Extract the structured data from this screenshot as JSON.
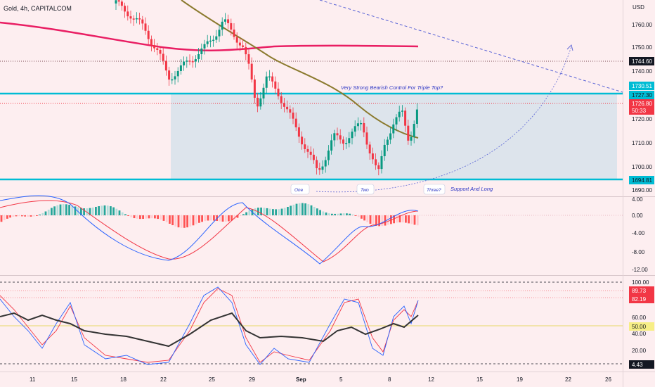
{
  "symbol_title": "Gold, 4h, CAPITALCOM",
  "currency": "USD",
  "annotations": {
    "bearish_note": "Very Strong Bearish Control For Triple Top?",
    "support_note": "Support And Long",
    "top_one": "One",
    "top_two": "Two",
    "top_three": "Three?"
  },
  "time_axis": [
    "11",
    "15",
    "18",
    "22",
    "25",
    "29",
    "Sep",
    "5",
    "8",
    "12",
    "15",
    "19",
    "22",
    "26"
  ],
  "price_ticks": [
    "1760.00",
    "1750.00",
    "1740.00",
    "1720.00",
    "1710.00",
    "1700.00",
    "1690.00"
  ],
  "price_labels": {
    "level_a": "1744.60",
    "level_b": "1730.51",
    "level_c": "1727.30",
    "last_price": "1726.80",
    "countdown": "50:33",
    "level_d": "1694.81"
  },
  "macd_ticks": [
    "4.00",
    "0.00",
    "-4.00",
    "-8.00",
    "-12.00"
  ],
  "stoch_ticks": [
    "100.00",
    "60.00",
    "40.00",
    "20.00"
  ],
  "stoch_labels": {
    "k": "89.73",
    "d": "82.19",
    "mid": "50.00",
    "low": "4.43"
  },
  "colors": {
    "up_candle": "#089981",
    "down_candle": "#f23645",
    "sma_long": "#e91e63",
    "sma_short": "#8b7a2e",
    "zone_line": "#00bcd4",
    "zone_fill": "#dde4ec",
    "macd_line": "#2962ff",
    "signal_line": "#f23645"
  },
  "chart_data": {
    "type": "candlestick",
    "title": "Gold, 4h, CAPITALCOM",
    "ylim": [
      1687,
      1772
    ],
    "x_dates": [
      "11",
      "15",
      "18",
      "22",
      "25",
      "29",
      "Sep",
      "5",
      "8",
      "12",
      "15",
      "19",
      "22",
      "26"
    ],
    "resistance_zone": [
      1694.81,
      1730.51
    ],
    "horizontal_levels": [
      1744.6,
      1727.3,
      1726.8
    ],
    "last_price": 1726.8,
    "key_points": [
      {
        "label": "One",
        "price": 1690
      },
      {
        "label": "Two",
        "price": 1693
      },
      {
        "label": "Three?",
        "price": 1694.81
      }
    ],
    "indicators": [
      {
        "name": "MACD",
        "ylim": [
          -12,
          4
        ]
      },
      {
        "name": "Stochastic",
        "ylim": [
          0,
          100
        ],
        "last_k": 89.73,
        "last_d": 82.19,
        "bands": [
          50,
          4.43
        ]
      }
    ]
  }
}
